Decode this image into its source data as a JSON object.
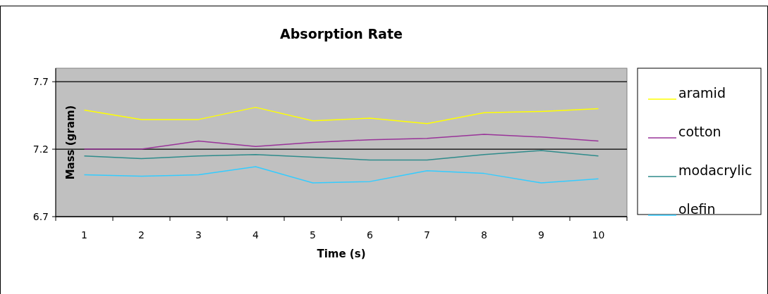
{
  "chart_data": {
    "type": "line",
    "title": "Absorption Rate",
    "xlabel": "Time (s)",
    "ylabel": "Mass (gram)",
    "categories": [
      "1",
      "2",
      "3",
      "4",
      "5",
      "6",
      "7",
      "8",
      "9",
      "10"
    ],
    "series": [
      {
        "name": "aramid",
        "color": "#ffff00",
        "values": [
          7.49,
          7.42,
          7.42,
          7.51,
          7.41,
          7.43,
          7.39,
          7.47,
          7.48,
          7.5
        ]
      },
      {
        "name": "cotton",
        "color": "#993399",
        "values": [
          7.2,
          7.2,
          7.26,
          7.22,
          7.25,
          7.27,
          7.28,
          7.31,
          7.29,
          7.26
        ]
      },
      {
        "name": "modacrylic",
        "color": "#2e8b8b",
        "values": [
          7.15,
          7.13,
          7.15,
          7.16,
          7.14,
          7.12,
          7.12,
          7.16,
          7.19,
          7.15
        ]
      },
      {
        "name": "olefin",
        "color": "#33ccff",
        "values": [
          7.01,
          7.0,
          7.01,
          7.07,
          6.95,
          6.96,
          7.04,
          7.02,
          6.95,
          6.98
        ]
      }
    ],
    "ylim": [
      6.7,
      7.8
    ],
    "yticks": [
      6.7,
      7.2,
      7.7
    ],
    "grid": "y",
    "legend": "right",
    "marker": "none",
    "line_style": "solid"
  }
}
